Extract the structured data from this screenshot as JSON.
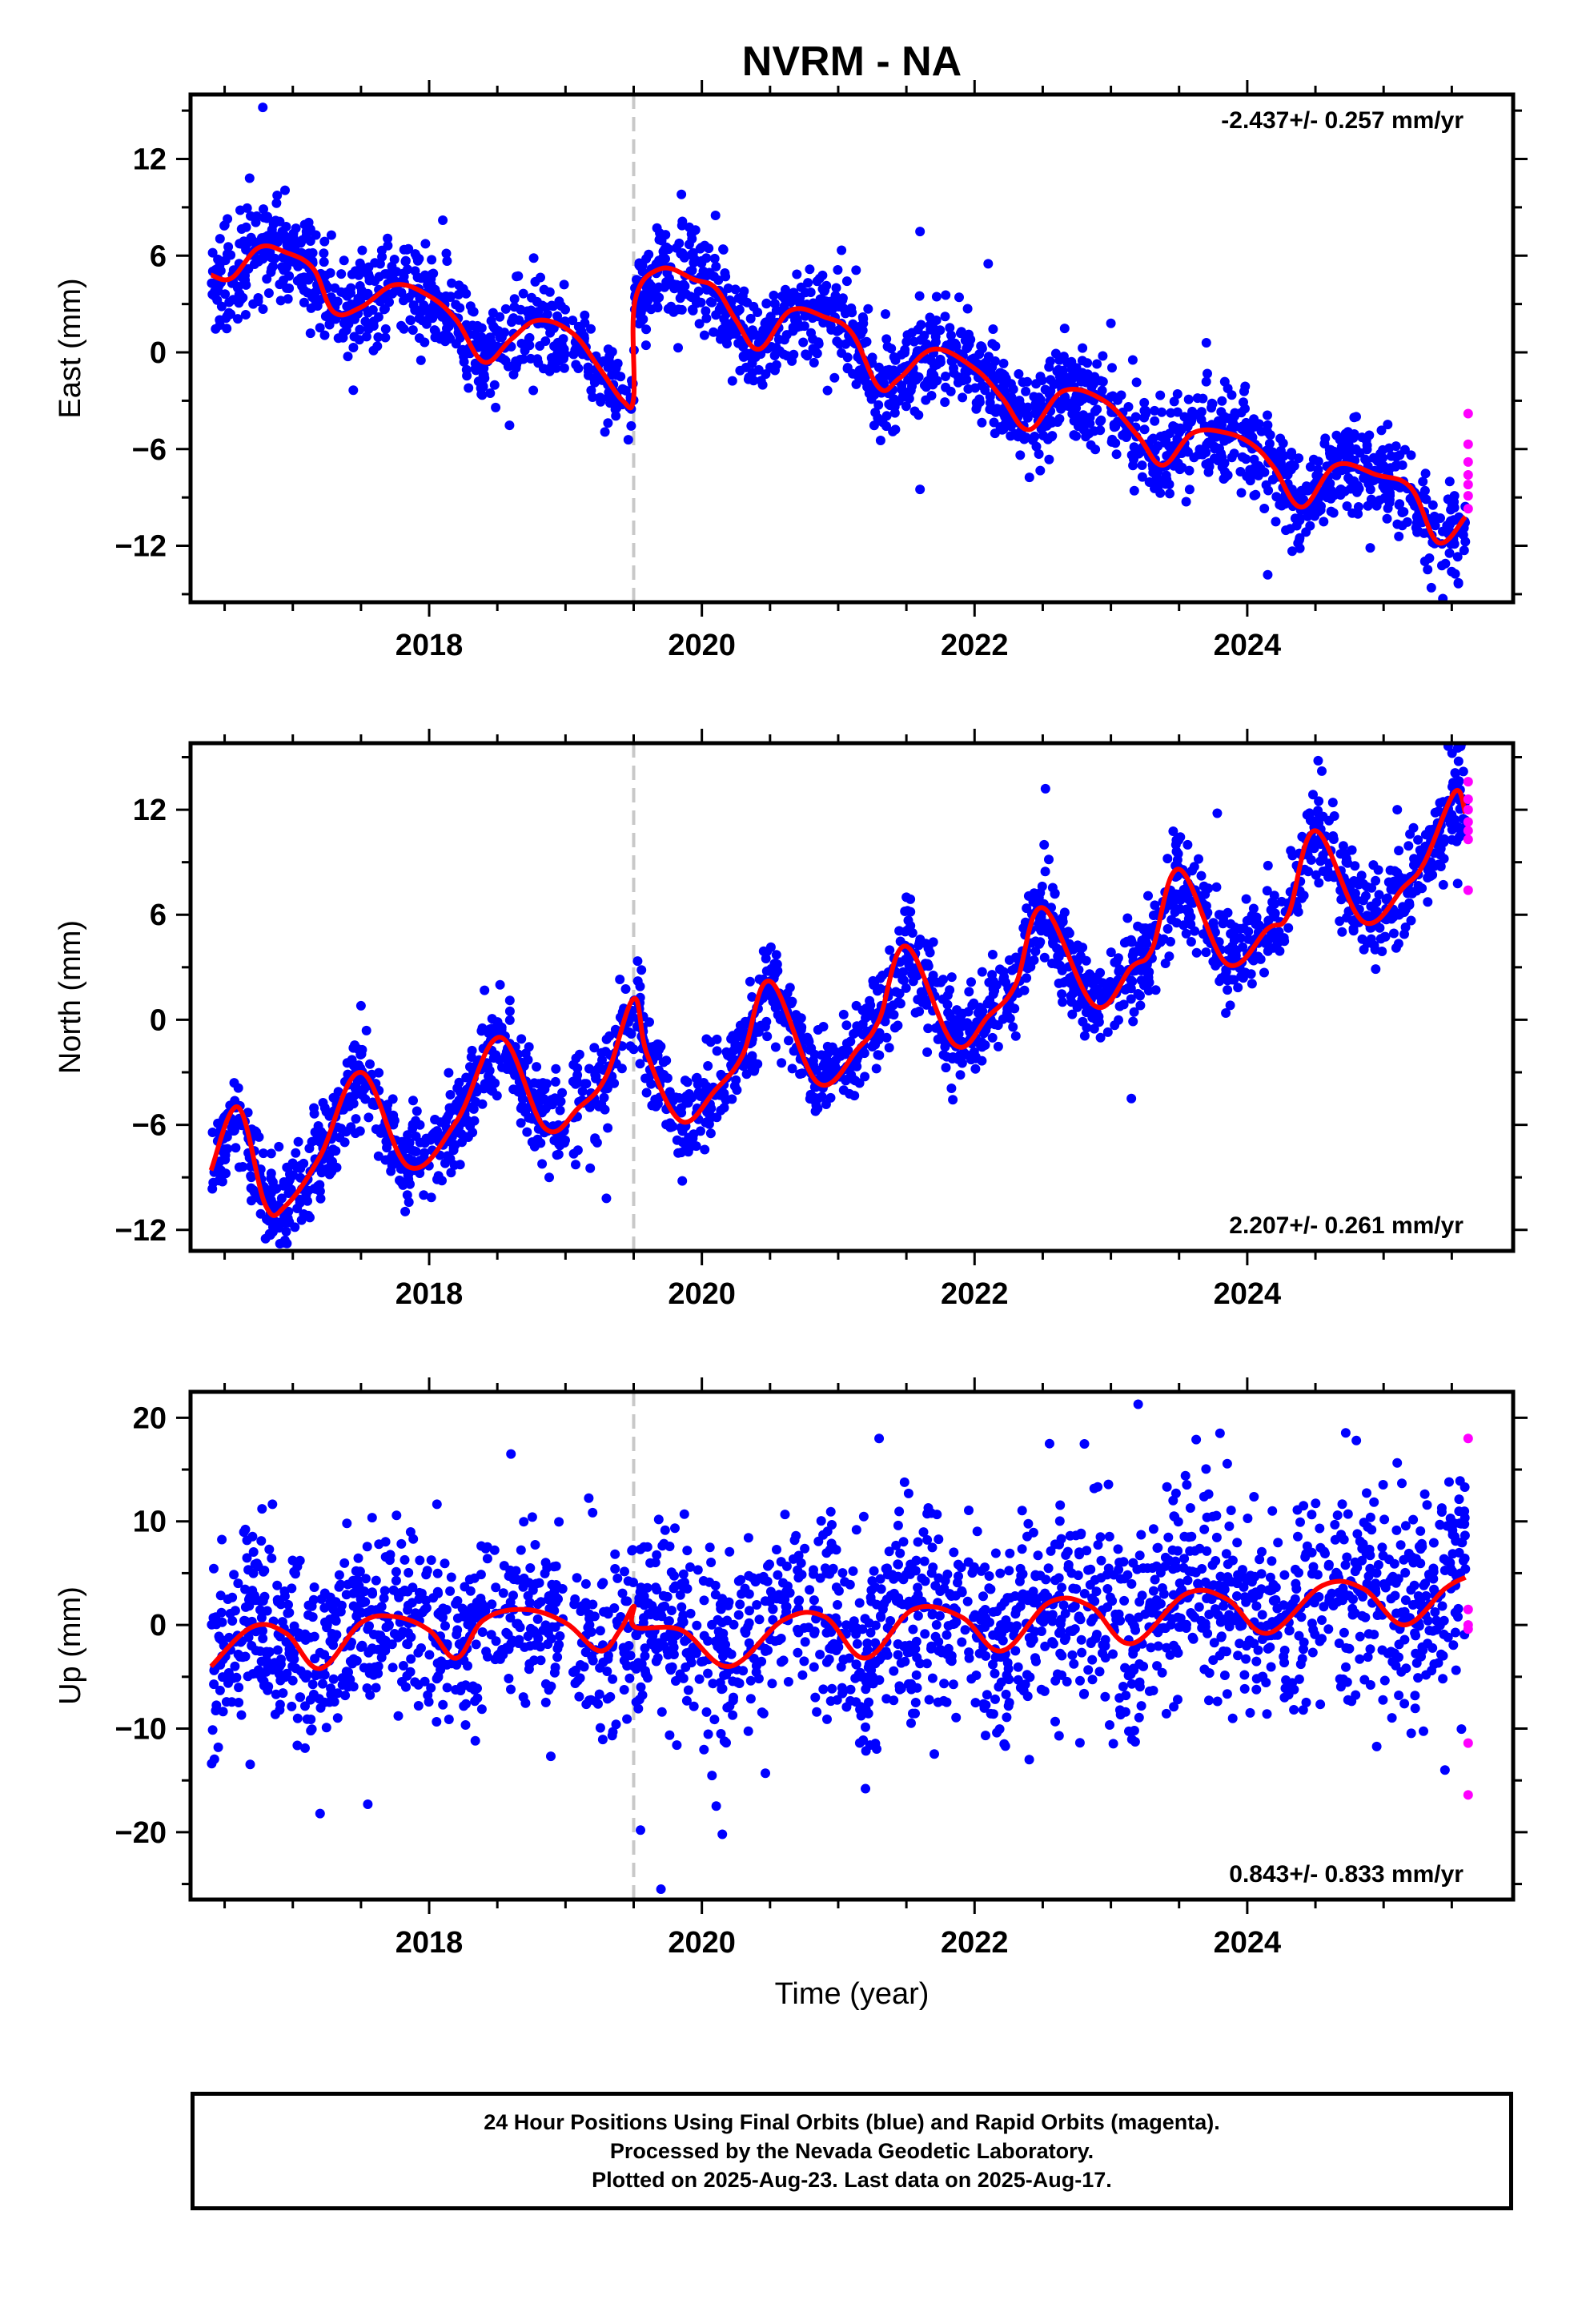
{
  "title": "NVRM - NA",
  "xlabel": "Time (year)",
  "footer": {
    "lines": [
      "24 Hour Positions Using Final Orbits (blue) and Rapid Orbits (magenta).",
      "Processed by the Nevada Geodetic Laboratory.",
      "Plotted on 2025-Aug-23. Last data on 2025-Aug-17."
    ]
  },
  "colors": {
    "final": "#0000ff",
    "rapid": "#ff00ff",
    "model": "#ff0000",
    "event": "#c8c8c8",
    "axis": "#000000"
  },
  "chart_data": [
    {
      "type": "scatter",
      "component": "east",
      "ylabel": "East (mm)",
      "xlim": [
        2016.25,
        2025.95
      ],
      "ylim": [
        -15.5,
        16
      ],
      "xticks": [
        2018,
        2020,
        2022,
        2024
      ],
      "yticks": [
        -12,
        -6,
        0,
        6,
        12
      ],
      "rate_text": "-2.437+/- 0.257 mm/yr",
      "rate_position": "top-right",
      "event_line_x": 2019.5,
      "model_series": {
        "name": "model",
        "x": [
          2016.4,
          2016.55,
          2016.75,
          2016.95,
          2017.15,
          2017.3,
          2017.5,
          2017.75,
          2018.0,
          2018.2,
          2018.4,
          2018.6,
          2018.8,
          2019.05,
          2019.25,
          2019.42,
          2019.5,
          2019.51,
          2019.7,
          2019.95,
          2020.1,
          2020.25,
          2020.42,
          2020.65,
          2020.9,
          2021.1,
          2021.3,
          2021.45,
          2021.7,
          2022.0,
          2022.2,
          2022.4,
          2022.65,
          2022.95,
          2023.2,
          2023.38,
          2023.6,
          2023.85,
          2024.05,
          2024.2,
          2024.4,
          2024.65,
          2024.95,
          2025.2,
          2025.4,
          2025.6
        ],
        "y": [
          4.8,
          4.6,
          6.5,
          6.2,
          5.2,
          2.5,
          2.8,
          4.2,
          3.5,
          2.0,
          -0.6,
          0.8,
          2.0,
          1.2,
          -1.0,
          -3.0,
          -2.8,
          3.2,
          5.2,
          4.5,
          4.0,
          2.0,
          0.2,
          2.6,
          2.2,
          1.2,
          -2.2,
          -1.6,
          0.2,
          -1.0,
          -2.8,
          -4.8,
          -2.4,
          -3.0,
          -5.2,
          -7.0,
          -5.0,
          -5.0,
          -5.8,
          -7.2,
          -9.6,
          -7.0,
          -7.6,
          -8.4,
          -11.8,
          -10.2
        ]
      },
      "final_series": {
        "name": "final",
        "segments": [
          {
            "x0": 2016.4,
            "x1": 2019.0,
            "n": 640,
            "y0": 4.8,
            "slope": -1.2,
            "amp": 2.2,
            "noise": 1.5
          },
          {
            "x0": 2019.05,
            "x1": 2019.5,
            "n": 90,
            "y0": -1.5,
            "slope": 0,
            "amp": 1.0,
            "noise": 1.2
          },
          {
            "x0": 2019.5,
            "x1": 2025.6,
            "n": 1500,
            "y0": 4.2,
            "slope": -2.45,
            "amp": 1.8,
            "noise": 1.5
          }
        ],
        "points": [
          {
            "x": 2016.78,
            "y": 15.2
          },
          {
            "x": 2017.1,
            "y": 7.5
          },
          {
            "x": 2018.1,
            "y": 8.2
          },
          {
            "x": 2019.85,
            "y": 9.8
          },
          {
            "x": 2020.1,
            "y": 8.5
          },
          {
            "x": 2021.6,
            "y": 7.5
          },
          {
            "x": 2021.6,
            "y": -8.5
          },
          {
            "x": 2022.1,
            "y": 5.5
          },
          {
            "x": 2023.0,
            "y": 1.8
          },
          {
            "x": 2023.7,
            "y": 0.6
          },
          {
            "x": 2024.15,
            "y": -13.8
          },
          {
            "x": 2025.35,
            "y": -14.6
          }
        ]
      },
      "rapid_series": {
        "name": "rapid",
        "x": [
          2025.62,
          2025.62,
          2025.62,
          2025.62,
          2025.62,
          2025.62,
          2025.62
        ],
        "y": [
          -3.8,
          -5.7,
          -6.8,
          -7.6,
          -8.2,
          -8.9,
          -9.7
        ]
      }
    },
    {
      "type": "scatter",
      "component": "north",
      "ylabel": "North (mm)",
      "xlim": [
        2016.25,
        2025.95
      ],
      "ylim": [
        -13.2,
        15.8
      ],
      "xticks": [
        2018,
        2020,
        2022,
        2024
      ],
      "yticks": [
        -12,
        -6,
        0,
        6,
        12
      ],
      "rate_text": "2.207+/- 0.261 mm/yr",
      "rate_position": "bottom-right",
      "event_line_x": 2019.5,
      "model_series": {
        "name": "model",
        "x": [
          2016.4,
          2016.6,
          2016.8,
          2016.95,
          2017.2,
          2017.5,
          2017.85,
          2018.2,
          2018.52,
          2018.85,
          2019.1,
          2019.3,
          2019.5,
          2019.6,
          2019.85,
          2020.1,
          2020.3,
          2020.5,
          2020.85,
          2021.15,
          2021.3,
          2021.5,
          2021.85,
          2022.1,
          2022.3,
          2022.5,
          2022.88,
          2023.15,
          2023.3,
          2023.5,
          2023.85,
          2024.15,
          2024.3,
          2024.5,
          2024.85,
          2025.15,
          2025.3,
          2025.52,
          2025.6
        ],
        "y": [
          -8.6,
          -5.0,
          -10.6,
          -10.6,
          -7.8,
          -3.0,
          -8.4,
          -5.8,
          -1.0,
          -6.2,
          -5.0,
          -3.2,
          1.2,
          -2.0,
          -5.8,
          -4.0,
          -2.0,
          2.2,
          -3.6,
          -1.6,
          0.0,
          4.2,
          -1.4,
          0.2,
          2.0,
          6.4,
          0.8,
          3.0,
          4.0,
          8.6,
          3.2,
          5.2,
          6.0,
          10.8,
          5.6,
          7.6,
          9.0,
          13.0,
          11.8
        ]
      },
      "final_series": {
        "name": "final",
        "segments": [
          {
            "x0": 2016.4,
            "x1": 2019.0,
            "n": 640,
            "y0": -6.0,
            "slope": 2.2,
            "amp": 3.4,
            "noise": 1.3
          },
          {
            "x0": 2019.05,
            "x1": 2019.5,
            "n": 90,
            "y0": -3.5,
            "slope": 2.2,
            "amp": 3.0,
            "noise": 1.4
          },
          {
            "x0": 2019.5,
            "x1": 2025.6,
            "n": 1500,
            "y0": -3.5,
            "slope": 2.2,
            "amp": 3.4,
            "noise": 1.3
          }
        ],
        "points": [
          {
            "x": 2016.8,
            "y": -12.5
          },
          {
            "x": 2017.5,
            "y": 0.8
          },
          {
            "x": 2018.52,
            "y": 2.0
          },
          {
            "x": 2019.3,
            "y": -10.2
          },
          {
            "x": 2021.5,
            "y": 7.0
          },
          {
            "x": 2022.52,
            "y": 13.2
          },
          {
            "x": 2023.15,
            "y": -4.5
          },
          {
            "x": 2023.78,
            "y": 11.8
          },
          {
            "x": 2024.52,
            "y": 14.8
          },
          {
            "x": 2025.1,
            "y": 12.0
          }
        ]
      },
      "rapid_series": {
        "name": "rapid",
        "x": [
          2025.62,
          2025.62,
          2025.62,
          2025.62,
          2025.62,
          2025.62,
          2025.62
        ],
        "y": [
          13.6,
          12.6,
          12.0,
          11.3,
          10.8,
          10.3,
          7.4
        ]
      }
    },
    {
      "type": "scatter",
      "component": "up",
      "ylabel": "Up (mm)",
      "xlim": [
        2016.25,
        2025.95
      ],
      "ylim": [
        -26.5,
        22.5
      ],
      "xticks": [
        2018,
        2020,
        2022,
        2024
      ],
      "yticks": [
        -20,
        -10,
        0,
        10,
        20
      ],
      "rate_text": "0.843+/- 0.833 mm/yr",
      "rate_position": "bottom-right",
      "event_line_x": 2019.5,
      "model_series": {
        "name": "model",
        "x": [
          2016.4,
          2016.7,
          2016.95,
          2017.2,
          2017.5,
          2017.75,
          2018.0,
          2018.2,
          2018.4,
          2018.7,
          2019.0,
          2019.25,
          2019.4,
          2019.5,
          2019.51,
          2019.85,
          2020.2,
          2020.6,
          2020.9,
          2021.2,
          2021.55,
          2021.9,
          2022.2,
          2022.55,
          2022.85,
          2023.15,
          2023.55,
          2023.85,
          2024.15,
          2024.55,
          2024.85,
          2025.15,
          2025.45,
          2025.6
        ],
        "y": [
          -4.0,
          -0.2,
          -0.8,
          -4.2,
          0.2,
          0.8,
          -0.5,
          -3.2,
          0.5,
          1.5,
          0.2,
          -2.5,
          -0.5,
          1.8,
          -0.2,
          -0.5,
          -4.0,
          0.5,
          0.8,
          -3.2,
          1.5,
          0.8,
          -2.5,
          2.2,
          1.8,
          -1.8,
          3.0,
          2.5,
          -0.8,
          3.8,
          3.5,
          0.0,
          3.5,
          4.6
        ]
      },
      "final_series": {
        "name": "final",
        "segments": [
          {
            "x0": 2016.4,
            "x1": 2019.0,
            "n": 640,
            "y0": -1.0,
            "slope": 0.9,
            "amp": 2.5,
            "noise": 4.2
          },
          {
            "x0": 2019.05,
            "x1": 2019.5,
            "n": 90,
            "y0": -1.0,
            "slope": 0,
            "amp": 1.5,
            "noise": 4.5
          },
          {
            "x0": 2019.5,
            "x1": 2025.6,
            "n": 1500,
            "y0": -1.0,
            "slope": 0.85,
            "amp": 2.5,
            "noise": 5.0
          }
        ],
        "points": [
          {
            "x": 2017.2,
            "y": -18.2
          },
          {
            "x": 2017.55,
            "y": -17.3
          },
          {
            "x": 2019.55,
            "y": -19.8
          },
          {
            "x": 2019.7,
            "y": -25.5
          },
          {
            "x": 2020.15,
            "y": -20.2
          },
          {
            "x": 2021.2,
            "y": -15.8
          },
          {
            "x": 2021.3,
            "y": 18.0
          },
          {
            "x": 2022.55,
            "y": 17.5
          },
          {
            "x": 2023.2,
            "y": 21.3
          },
          {
            "x": 2023.8,
            "y": 18.5
          },
          {
            "x": 2024.8,
            "y": 17.8
          },
          {
            "x": 2018.6,
            "y": 16.5
          },
          {
            "x": 2025.48,
            "y": 13.8
          },
          {
            "x": 2025.45,
            "y": -14.0
          }
        ]
      },
      "rapid_series": {
        "name": "rapid",
        "x": [
          2025.62,
          2025.62,
          2025.62,
          2025.62,
          2025.62,
          2025.62
        ],
        "y": [
          18.0,
          1.5,
          0.0,
          -0.4,
          -11.4,
          -16.4
        ]
      }
    }
  ]
}
